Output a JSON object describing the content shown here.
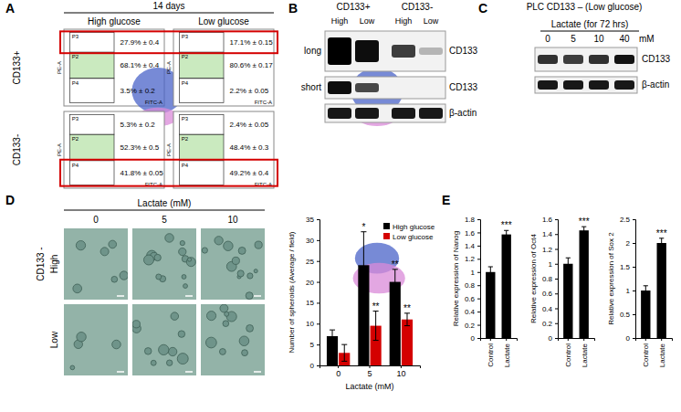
{
  "panels": {
    "A": {
      "letter": "A",
      "title": "14 days",
      "columns": [
        "High glucose",
        "Low glucose"
      ],
      "x_label": "FITC-A",
      "y_label": "PE-A",
      "rows": [
        {
          "label": "CD133+",
          "plots": [
            {
              "gates": [
                {
                  "name": "P3",
                  "text": "27.9% ± 0.4"
                },
                {
                  "name": "P2",
                  "text": "68.1% ± 0.4"
                },
                {
                  "name": "P4",
                  "text": "3.5% ± 0.2"
                }
              ]
            },
            {
              "gates": [
                {
                  "name": "P3",
                  "text": "17.1% ± 0.15"
                },
                {
                  "name": "P2",
                  "text": "80.6% ± 0.17"
                },
                {
                  "name": "P4",
                  "text": "2.2% ± 0.05"
                }
              ]
            }
          ]
        },
        {
          "label": "CD133-",
          "plots": [
            {
              "gates": [
                {
                  "name": "P3",
                  "text": "5.3% ± 0.2"
                },
                {
                  "name": "P2",
                  "text": "52.3% ± 0.5"
                },
                {
                  "name": "P4",
                  "text": "41.8% ± 0.05"
                }
              ]
            },
            {
              "gates": [
                {
                  "name": "P3",
                  "text": "2.4% ± 0.05"
                },
                {
                  "name": "P2",
                  "text": "48.4% ± 0.3"
                },
                {
                  "name": "P4",
                  "text": "49.2% ± 0.4"
                }
              ]
            }
          ]
        }
      ]
    },
    "B": {
      "letter": "B",
      "groups": [
        "CD133+",
        "CD133-"
      ],
      "lanes": [
        "High",
        "Low",
        "High",
        "Low"
      ],
      "rows": [
        {
          "label": "long",
          "protein": "CD133"
        },
        {
          "label": "short",
          "protein": "CD133"
        },
        {
          "protein": "β-actin"
        }
      ]
    },
    "C": {
      "letter": "C",
      "title": "PLC CD133 – (Low glucose)",
      "treatment": "Lactate (for 72 hrs)",
      "lanes": [
        "0",
        "5",
        "10",
        "40"
      ],
      "unit": "mM",
      "rows": [
        "CD133",
        "β-actin"
      ]
    },
    "D": {
      "letter": "D",
      "title": "Lactate (mM)",
      "columns": [
        "0",
        "5",
        "10"
      ],
      "group": "CD133 -",
      "rows": [
        "High",
        "Low"
      ]
    },
    "E": {
      "letter": "E"
    }
  },
  "chart_data": [
    {
      "type": "bar",
      "x_label": "Lactate (mM)",
      "y_label": "Number of spheroids (Average / field)",
      "categories": [
        "0",
        "5",
        "10"
      ],
      "series": [
        {
          "name": "High glucose",
          "color": "#000000",
          "values": [
            7,
            24,
            20
          ],
          "errors": [
            1.5,
            8,
            3
          ],
          "significance": [
            null,
            "*",
            "**"
          ]
        },
        {
          "name": "Low glucose",
          "color": "#d40000",
          "values": [
            3,
            9.5,
            11
          ],
          "errors": [
            2,
            3.5,
            1.5
          ],
          "significance": [
            null,
            "**",
            "**"
          ]
        }
      ],
      "ylim": [
        0,
        35
      ],
      "yticks": [
        0,
        5,
        10,
        15,
        20,
        25,
        30,
        35
      ],
      "grid": false,
      "legend": "top-right"
    },
    {
      "type": "bar",
      "y_label": "Relative expression of Nanog",
      "categories": [
        "Control",
        "Lactate"
      ],
      "series": [
        {
          "color": "#000000",
          "values": [
            1,
            1.57
          ],
          "errors": [
            0.08,
            0.06
          ],
          "significance": [
            null,
            "***"
          ]
        }
      ],
      "ylim": [
        0,
        1.8
      ],
      "yticks": [
        0,
        0.2,
        0.4,
        0.6,
        0.8,
        1,
        1.2,
        1.4,
        1.6,
        1.8
      ],
      "grid": false
    },
    {
      "type": "bar",
      "y_label": "Relative expression of Oct4",
      "categories": [
        "Control",
        "Lactate"
      ],
      "series": [
        {
          "color": "#000000",
          "values": [
            1,
            1.45
          ],
          "errors": [
            0.08,
            0.05
          ],
          "significance": [
            null,
            "***"
          ]
        }
      ],
      "ylim": [
        0,
        1.6
      ],
      "yticks": [
        0,
        0.2,
        0.4,
        0.6,
        0.8,
        1,
        1.2,
        1.4,
        1.6
      ],
      "grid": false
    },
    {
      "type": "bar",
      "y_label": "Relative expression of Sox 2",
      "categories": [
        "Control",
        "Lactate"
      ],
      "series": [
        {
          "color": "#000000",
          "values": [
            1,
            2
          ],
          "errors": [
            0.1,
            0.1
          ],
          "significance": [
            null,
            "***"
          ]
        }
      ],
      "ylim": [
        0,
        2.5
      ],
      "yticks": [
        0,
        0.5,
        1,
        1.5,
        2,
        2.5
      ],
      "grid": false
    }
  ]
}
